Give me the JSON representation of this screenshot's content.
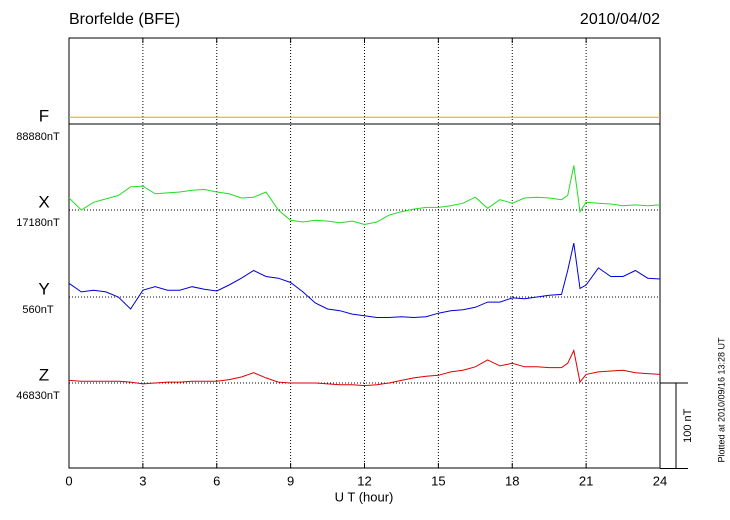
{
  "chart_data": {
    "type": "line",
    "title": "Brorfelde (BFE)",
    "date": "2010/04/02",
    "xlabel": "U T (hour)",
    "plot_note": "Plotted at 2010/09/16 13:28 UT",
    "xlim": [
      0,
      24
    ],
    "xticks": [
      0,
      3,
      6,
      9,
      12,
      15,
      18,
      21,
      24
    ],
    "grid": true,
    "scale_bar": {
      "value": 100,
      "label": "100 nT"
    },
    "x": [
      0,
      0.5,
      1,
      1.5,
      2,
      2.5,
      3,
      3.5,
      4,
      4.5,
      5,
      5.5,
      6,
      6.5,
      7,
      7.5,
      8,
      8.5,
      9,
      9.5,
      10,
      10.5,
      11,
      11.5,
      12,
      12.5,
      13,
      13.5,
      14,
      14.5,
      15,
      15.5,
      16,
      16.5,
      17,
      17.5,
      18,
      18.5,
      19,
      19.5,
      20,
      20.25,
      20.5,
      20.75,
      21,
      21.5,
      22,
      22.5,
      23,
      23.5,
      24
    ],
    "series": [
      {
        "name": "F",
        "baseline_label": "88880nT",
        "color": "#f0a000",
        "values": [
          8,
          8,
          8,
          8,
          8,
          8,
          8,
          8,
          8,
          8,
          8,
          8,
          8,
          8,
          8,
          8,
          8,
          8,
          8,
          8,
          8,
          8,
          8,
          8,
          8,
          8,
          8,
          8,
          8,
          8,
          8,
          8,
          8,
          8,
          8,
          8,
          8,
          8,
          8,
          8,
          8,
          8,
          8,
          8,
          8,
          8,
          8,
          8,
          8,
          8,
          8
        ]
      },
      {
        "name": "X",
        "baseline_label": "17180nT",
        "color": "#22dd22",
        "values": [
          14,
          0,
          9,
          13,
          17,
          27,
          28,
          19,
          20,
          21,
          23,
          24,
          21,
          19,
          14,
          15,
          21,
          0,
          -12,
          -14,
          -12,
          -13,
          -15,
          -13,
          -17,
          -14,
          -6,
          -2,
          1,
          3,
          3,
          5,
          8,
          15,
          2,
          12,
          8,
          14,
          15,
          14,
          12,
          17,
          52,
          -2,
          9,
          8,
          7,
          5,
          6,
          5,
          6
        ]
      },
      {
        "name": "Y",
        "baseline_label": "560nT",
        "color": "#0000dd",
        "values": [
          16,
          6,
          8,
          6,
          0,
          -14,
          8,
          12,
          8,
          8,
          12,
          9,
          7,
          14,
          22,
          31,
          24,
          22,
          17,
          6,
          -7,
          -14,
          -16,
          -20,
          -22,
          -24,
          -24,
          -23,
          -24,
          -23,
          -19,
          -16,
          -15,
          -12,
          -6,
          -6,
          -1,
          -2,
          0,
          2,
          3,
          31,
          63,
          10,
          14,
          34,
          24,
          24,
          31,
          22,
          21
        ]
      },
      {
        "name": "Z",
        "baseline_label": "46830nT",
        "color": "#dd0000",
        "values": [
          3,
          2,
          2,
          2,
          2,
          1,
          -1,
          0,
          1,
          1,
          2,
          2,
          2,
          4,
          7,
          12,
          6,
          1,
          0,
          0,
          0,
          -1,
          -2,
          -2,
          -3,
          -2,
          0,
          3,
          6,
          8,
          9,
          13,
          15,
          19,
          27,
          20,
          23,
          19,
          19,
          18,
          18,
          23,
          38,
          1,
          10,
          13,
          14,
          15,
          12,
          11,
          10
        ]
      }
    ]
  }
}
